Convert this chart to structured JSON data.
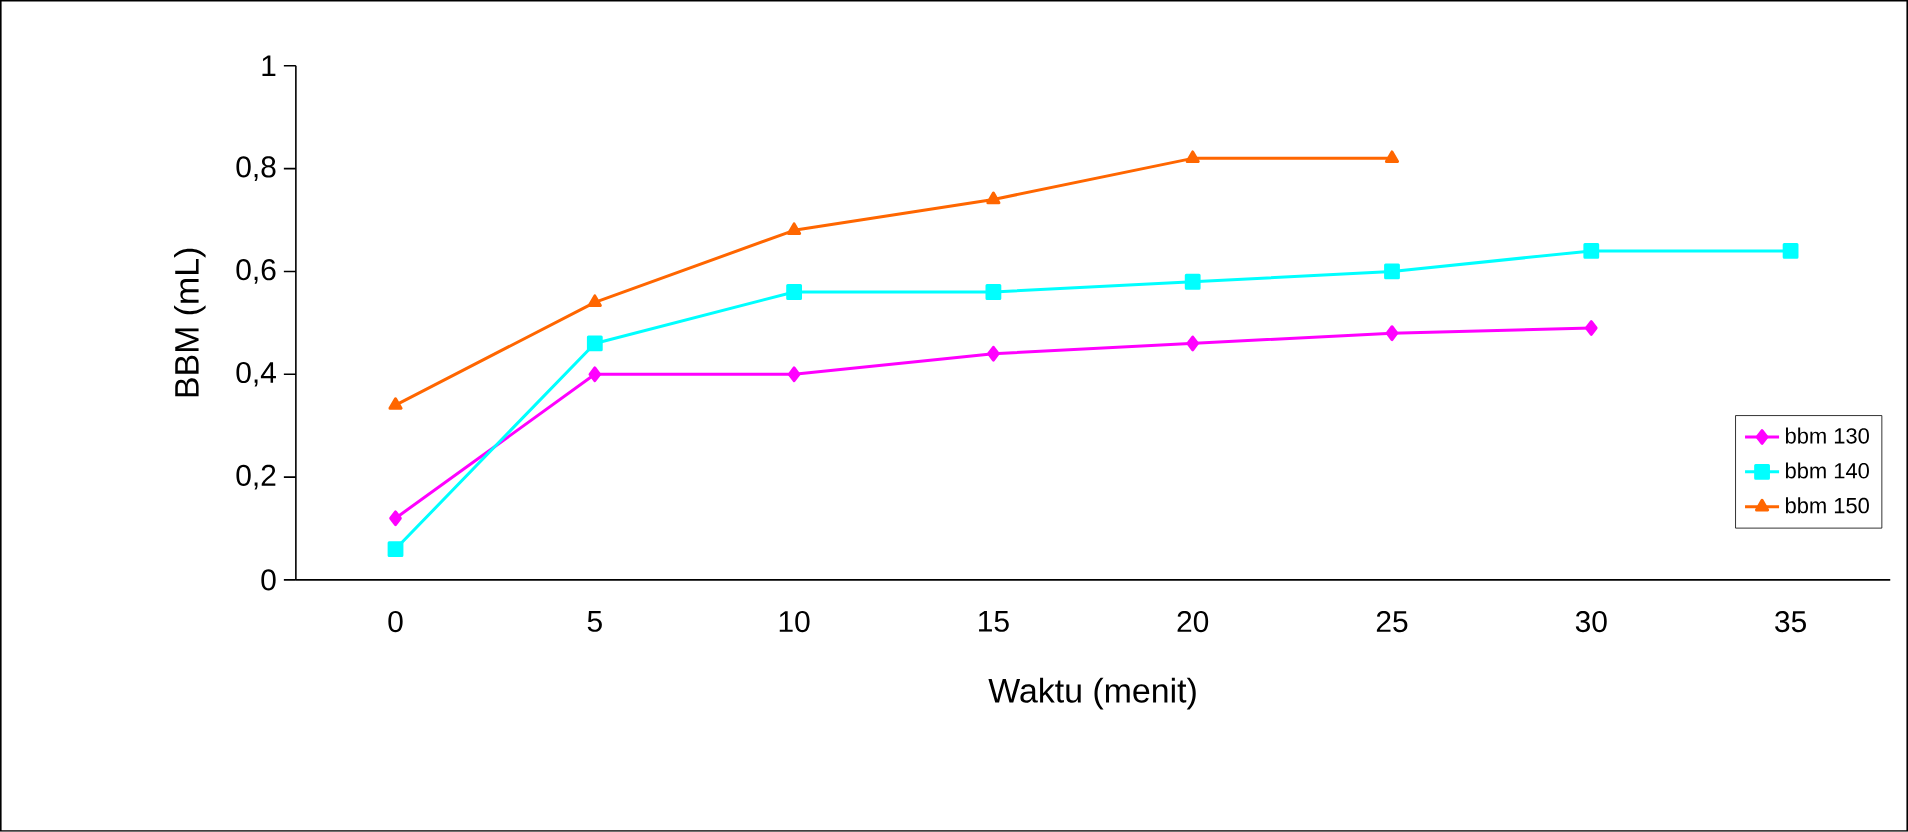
{
  "chart_data": {
    "type": "line",
    "xlabel": "Waktu (menit)",
    "ylabel": "BBM (mL)",
    "categories": [
      "0",
      "5",
      "10",
      "15",
      "20",
      "25",
      "30",
      "35"
    ],
    "series": [
      {
        "name": "bbm 130",
        "color": "#ff00ff",
        "marker": "diamond",
        "values": [
          0.12,
          0.4,
          0.4,
          0.44,
          0.46,
          0.48,
          0.49,
          null
        ]
      },
      {
        "name": "bbm 140",
        "color": "#00ffff",
        "marker": "square",
        "values": [
          0.06,
          0.46,
          0.56,
          0.56,
          0.58,
          0.6,
          0.64,
          0.64
        ]
      },
      {
        "name": "bbm 150",
        "color": "#ff6600",
        "marker": "triangle",
        "values": [
          0.34,
          0.54,
          0.68,
          0.74,
          0.82,
          0.82,
          null,
          null
        ]
      }
    ],
    "ylim": [
      0,
      1
    ],
    "yticks": [
      0,
      {
        "value": 0.2,
        "label": "0,2"
      },
      {
        "value": 0.4,
        "label": "0,4"
      },
      {
        "value": 0.6,
        "label": "0,6"
      },
      {
        "value": 0.8,
        "label": "0,8"
      },
      1
    ],
    "grid": false,
    "legend": "right"
  }
}
